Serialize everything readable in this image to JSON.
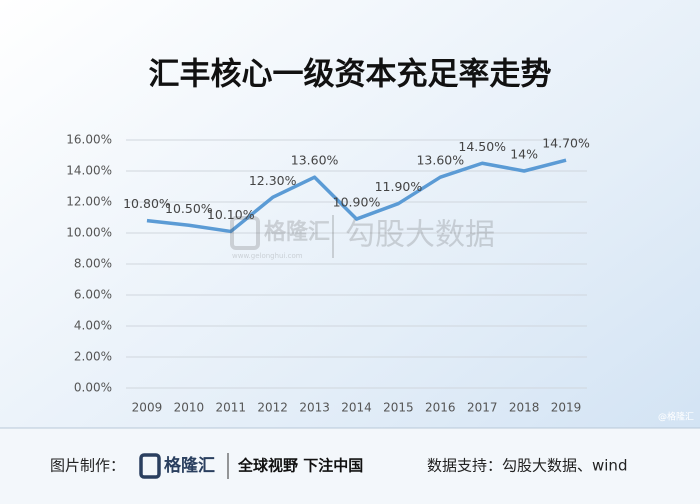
{
  "chart_data": {
    "type": "line",
    "title": "汇丰核心一级资本充足率走势",
    "categories": [
      "2009",
      "2010",
      "2011",
      "2012",
      "2013",
      "2014",
      "2015",
      "2016",
      "2017",
      "2018",
      "2019"
    ],
    "values": [
      10.8,
      10.5,
      10.1,
      12.3,
      13.6,
      10.9,
      11.9,
      13.6,
      14.5,
      14,
      14.7
    ],
    "value_labels": [
      "10.80%",
      "10.50%",
      "10.10%",
      "12.30%",
      "13.60%",
      "10.90%",
      "11.90%",
      "13.60%",
      "14.50%",
      "14%",
      "14.70%"
    ],
    "color": "#5b9bd5",
    "ylim": [
      0,
      16
    ],
    "yticks": [
      {
        "value": 0,
        "label": "0.00%"
      },
      {
        "value": 2,
        "label": "2.00%"
      },
      {
        "value": 4,
        "label": "4.00%"
      },
      {
        "value": 6,
        "label": "6.00%"
      },
      {
        "value": 8,
        "label": "8.00%"
      },
      {
        "value": 10,
        "label": "10.00%"
      },
      {
        "value": 12,
        "label": "12.00%"
      },
      {
        "value": 14,
        "label": "14.00%"
      },
      {
        "value": 16,
        "label": "16.00%"
      }
    ],
    "grid": true
  },
  "watermark": {
    "brand": "格隆汇",
    "site": "www.gelonghui.com",
    "partner": "勾股大数据",
    "corner": "@格隆汇"
  },
  "footer": {
    "made_by": "图片制作：",
    "brand": "格隆汇",
    "slogan": "全球视野 下注中国",
    "source": "数据支持：勾股大数据、wind"
  }
}
